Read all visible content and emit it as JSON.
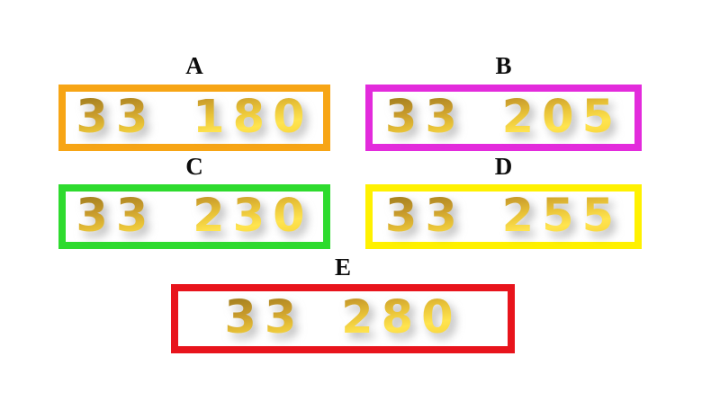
{
  "page": {
    "background_color": "#ffffff",
    "description": "Multiple choice options with 3D gold numbers"
  },
  "gold_digit_colors": {
    "dark": "#9c7a1d",
    "mid": "#e8c237",
    "bright": "#ffe44f"
  },
  "options": [
    {
      "label": "A",
      "value": "33 180",
      "border_color": "#F7A515"
    },
    {
      "label": "B",
      "value": "33 205",
      "border_color": "#E32BDC"
    },
    {
      "label": "C",
      "value": "33 230",
      "border_color": "#2EDB2E"
    },
    {
      "label": "D",
      "value": "33 255",
      "border_color": "#FFF100"
    },
    {
      "label": "E",
      "value": "33 280",
      "border_color": "#E8141C"
    }
  ]
}
